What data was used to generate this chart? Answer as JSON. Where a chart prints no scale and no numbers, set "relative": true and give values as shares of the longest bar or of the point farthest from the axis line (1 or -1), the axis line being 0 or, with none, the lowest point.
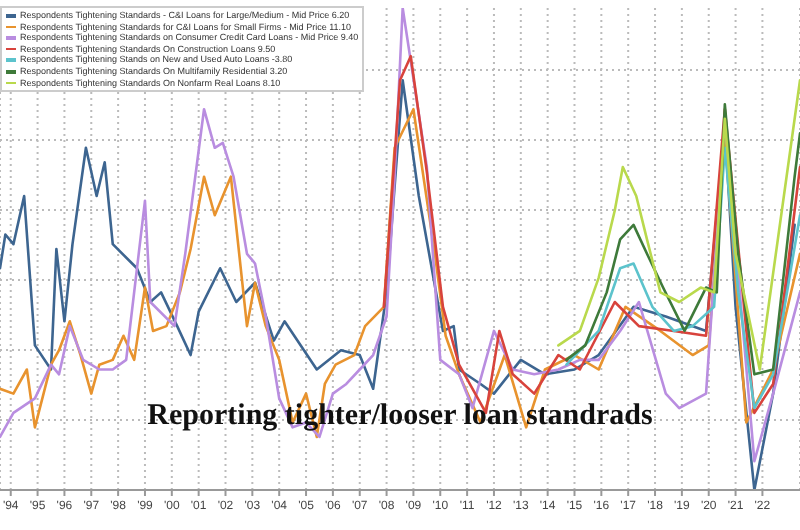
{
  "chart_data": {
    "type": "line",
    "title": "Reporting tighter/looser loan standrads",
    "relative": true,
    "grid": true,
    "legend": "top left",
    "xlim": [
      1993.6,
      2023.4
    ],
    "xticks": [
      {
        "value": 1994,
        "label": "'94"
      },
      {
        "value": 1995,
        "label": "'95"
      },
      {
        "value": 1996,
        "label": "'96"
      },
      {
        "value": 1997,
        "label": "'97"
      },
      {
        "value": 1998,
        "label": "'98"
      },
      {
        "value": 1999,
        "label": "'99"
      },
      {
        "value": 2000,
        "label": "'00"
      },
      {
        "value": 2001,
        "label": "'01"
      },
      {
        "value": 2002,
        "label": "'02"
      },
      {
        "value": 2003,
        "label": "'03"
      },
      {
        "value": 2004,
        "label": "'04"
      },
      {
        "value": 2005,
        "label": "'05"
      },
      {
        "value": 2006,
        "label": "'06"
      },
      {
        "value": 2007,
        "label": "'07"
      },
      {
        "value": 2008,
        "label": "'08"
      },
      {
        "value": 2009,
        "label": "'09"
      },
      {
        "value": 2010,
        "label": "'10"
      },
      {
        "value": 2011,
        "label": "'11"
      },
      {
        "value": 2012,
        "label": "'12"
      },
      {
        "value": 2013,
        "label": "'13"
      },
      {
        "value": 2014,
        "label": "'14"
      },
      {
        "value": 2015,
        "label": "'15"
      },
      {
        "value": 2016,
        "label": "'16"
      },
      {
        "value": 2017,
        "label": "'17"
      },
      {
        "value": 2018,
        "label": "'18"
      },
      {
        "value": 2019,
        "label": "'19"
      },
      {
        "value": 2020,
        "label": "'20"
      },
      {
        "value": 2021,
        "label": "'21"
      },
      {
        "value": 2022,
        "label": "'22"
      }
    ],
    "series": [
      {
        "name": "Respondents Tightening Standards - C&I Loans for Large/Medium - Mid Price 6.20",
        "color": "#3d6590",
        "x": [
          1993.6,
          1993.8,
          1994.1,
          1994.5,
          1994.9,
          1995.5,
          1995.7,
          1996.0,
          1996.3,
          1996.8,
          1997.2,
          1997.5,
          1997.8,
          1998.7,
          1999.2,
          1999.6,
          2000.2,
          2000.7,
          2001.0,
          2001.8,
          2002.4,
          2003.1,
          2003.8,
          2004.2,
          2005.4,
          2006.3,
          2007.0,
          2007.5,
          2008.0,
          2008.6,
          2009.2,
          2010.1,
          2010.5,
          2010.7,
          2011.5,
          2012.0,
          2013.0,
          2013.9,
          2015.0,
          2015.9,
          2017.2,
          2018.4,
          2019.9,
          2020.6,
          2021.0,
          2021.7,
          2022.4,
          2023.2
        ],
        "values": [
          0.46,
          0.53,
          0.51,
          0.61,
          0.3,
          0.25,
          0.5,
          0.35,
          0.51,
          0.71,
          0.61,
          0.68,
          0.51,
          0.46,
          0.39,
          0.41,
          0.34,
          0.28,
          0.37,
          0.46,
          0.39,
          0.43,
          0.31,
          0.35,
          0.25,
          0.29,
          0.28,
          0.21,
          0.41,
          0.85,
          0.61,
          0.33,
          0.34,
          0.25,
          0.22,
          0.2,
          0.27,
          0.24,
          0.25,
          0.28,
          0.38,
          0.36,
          0.33,
          0.75,
          0.38,
          0,
          0.2,
          0.55
        ]
      },
      {
        "name": "Respondents Tightening Standards for C&I Loans for Small Firms - Mid Price 11.10",
        "color": "#e8932e",
        "x": [
          1993.6,
          1994.1,
          1994.6,
          1994.9,
          1995.5,
          1995.8,
          1996.2,
          1996.6,
          1997.0,
          1997.3,
          1997.8,
          1998.2,
          1998.6,
          1999.0,
          1999.3,
          1999.8,
          2000.3,
          2000.7,
          2001.2,
          2001.6,
          2002.2,
          2002.8,
          2003.1,
          2003.5,
          2004.0,
          2004.5,
          2005.0,
          2005.4,
          2005.7,
          2006.1,
          2006.8,
          2007.2,
          2007.9,
          2008.3,
          2009.0,
          2009.8,
          2010.2,
          2010.7,
          2011.5,
          2012.4,
          2013.2,
          2013.9,
          2015.0,
          2015.9,
          2016.9,
          2018.2,
          2019.4,
          2020.0,
          2020.6,
          2021.4,
          2022.4,
          2023.4
        ],
        "values": [
          0.21,
          0.2,
          0.25,
          0.13,
          0.26,
          0.29,
          0.35,
          0.28,
          0.2,
          0.26,
          0.27,
          0.32,
          0.27,
          0.42,
          0.33,
          0.34,
          0.41,
          0.5,
          0.65,
          0.57,
          0.65,
          0.34,
          0.43,
          0.34,
          0.27,
          0.14,
          0.2,
          0.11,
          0.22,
          0.26,
          0.28,
          0.34,
          0.38,
          0.71,
          0.79,
          0.49,
          0.32,
          0.24,
          0.14,
          0.28,
          0.13,
          0.25,
          0.28,
          0.25,
          0.38,
          0.33,
          0.28,
          0.3,
          0.74,
          0.14,
          0.25,
          0.49
        ]
      },
      {
        "name": "Respondents Tightening Standards on Consumer Credit Card Loans - Mid Price 9.40",
        "color": "#b98de0",
        "x": [
          1993.6,
          1994.1,
          1994.9,
          1995.5,
          1995.8,
          1996.2,
          1996.7,
          1997.3,
          1997.8,
          1998.3,
          1999.0,
          1999.2,
          2000.1,
          2000.5,
          2001.2,
          2001.6,
          2001.9,
          2002.3,
          2002.8,
          2003.1,
          2003.5,
          2004.0,
          2004.5,
          2005.0,
          2005.5,
          2006.0,
          2006.5,
          2007.0,
          2007.5,
          2008.0,
          2008.3,
          2008.6,
          2009.5,
          2010.0,
          2010.7,
          2011.2,
          2012.0,
          2012.7,
          2013.5,
          2014.4,
          2015.2,
          2015.9,
          2016.7,
          2017.4,
          2018.4,
          2018.9,
          2019.9,
          2020.6,
          2021.7,
          2022.4,
          2023.4
        ],
        "values": [
          0.11,
          0.16,
          0.19,
          0.26,
          0.24,
          0.34,
          0.27,
          0.25,
          0.25,
          0.27,
          0.6,
          0.39,
          0.34,
          0.49,
          0.79,
          0.71,
          0.72,
          0.65,
          0.49,
          0.47,
          0.36,
          0.19,
          0.13,
          0.14,
          0.11,
          0.2,
          0.22,
          0.25,
          0.28,
          0.36,
          0.65,
          1,
          0.67,
          0.27,
          0.24,
          0.17,
          0.33,
          0.25,
          0.24,
          0.25,
          0.27,
          0.27,
          0.33,
          0.39,
          0.2,
          0.17,
          0.2,
          0.77,
          0.06,
          0.2,
          0.41
        ]
      },
      {
        "name": "Respondents Tightening Standards On Construction Loans 9.50",
        "color": "#d8433c",
        "x": [
          2007.9,
          2008.5,
          2008.9,
          2009.5,
          2010.1,
          2010.7,
          2011.7,
          2012.2,
          2012.7,
          2013.5,
          2014.4,
          2015.2,
          2016.5,
          2017.4,
          2018.7,
          2019.9,
          2020.6,
          2021.7,
          2022.4,
          2023.4
        ],
        "values": [
          0.38,
          0.85,
          0.9,
          0.66,
          0.38,
          0.26,
          0.16,
          0.33,
          0.24,
          0.2,
          0.28,
          0.25,
          0.39,
          0.34,
          0.33,
          0.32,
          0.79,
          0.16,
          0.22,
          0.67
        ]
      },
      {
        "name": "Respondents Tightening Stands on New and Used Auto Loans -3.80",
        "color": "#5cc3cc",
        "x": [
          2014.7,
          2015.9,
          2016.7,
          2017.2,
          2017.9,
          2018.7,
          2019.4,
          2020.2,
          2020.6,
          2021.1,
          2021.7,
          2022.4,
          2023.4
        ],
        "values": [
          0.26,
          0.33,
          0.46,
          0.47,
          0.38,
          0.33,
          0.34,
          0.38,
          0.71,
          0.41,
          0.17,
          0.24,
          0.57
        ]
      },
      {
        "name": "Respondents Tightening Standards On Multifamily Residential 3.20",
        "color": "#3e7a3a",
        "x": [
          2014.7,
          2015.4,
          2016.2,
          2016.7,
          2017.2,
          2017.7,
          2018.3,
          2019.1,
          2019.9,
          2020.3,
          2020.6,
          2021.1,
          2021.7,
          2022.4,
          2023.2,
          2023.4
        ],
        "values": [
          0.27,
          0.3,
          0.41,
          0.52,
          0.55,
          0.49,
          0.42,
          0.33,
          0.42,
          0.41,
          0.8,
          0.49,
          0.24,
          0.25,
          0.65,
          0.74
        ]
      },
      {
        "name": "Respondents Tightening Standards On Nonfarm Real Loans 8.10",
        "color": "#b9d94c",
        "x": [
          2014.4,
          2015.2,
          2015.9,
          2016.5,
          2016.8,
          2017.3,
          2017.7,
          2018.2,
          2018.9,
          2019.7,
          2020.2,
          2020.6,
          2021.0,
          2021.9,
          2022.6,
          2023.4
        ],
        "values": [
          0.3,
          0.33,
          0.44,
          0.58,
          0.67,
          0.61,
          0.52,
          0.41,
          0.39,
          0.42,
          0.41,
          0.77,
          0.49,
          0.25,
          0.53,
          0.85
        ]
      }
    ]
  }
}
